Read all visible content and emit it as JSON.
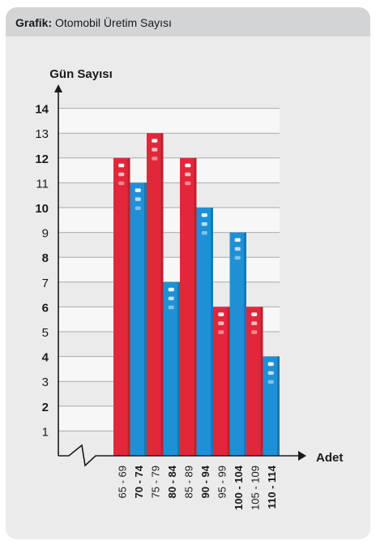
{
  "header": {
    "label": "Grafik:",
    "subtitle": "Otomobil Üretim Sayısı"
  },
  "chart_data": {
    "type": "bar",
    "ylabel": "Gün Sayısı",
    "xlabel": "Adet",
    "ylim": [
      0,
      14
    ],
    "yticks": [
      1,
      2,
      3,
      4,
      5,
      6,
      7,
      8,
      9,
      10,
      11,
      12,
      13,
      14
    ],
    "categories": [
      "65 - 69",
      "70 - 74",
      "75 - 79",
      "80 - 84",
      "85 - 89",
      "90 - 94",
      "95 - 99",
      "100 - 104",
      "105 - 109",
      "110 - 114"
    ],
    "values": [
      12,
      11,
      13,
      7,
      12,
      10,
      6,
      9,
      6,
      4
    ],
    "colors": [
      "#e2273a",
      "#1e90d6",
      "#e2273a",
      "#1e90d6",
      "#e2273a",
      "#1e90d6",
      "#e2273a",
      "#1e90d6",
      "#e2273a",
      "#1e90d6"
    ],
    "grid": true
  }
}
